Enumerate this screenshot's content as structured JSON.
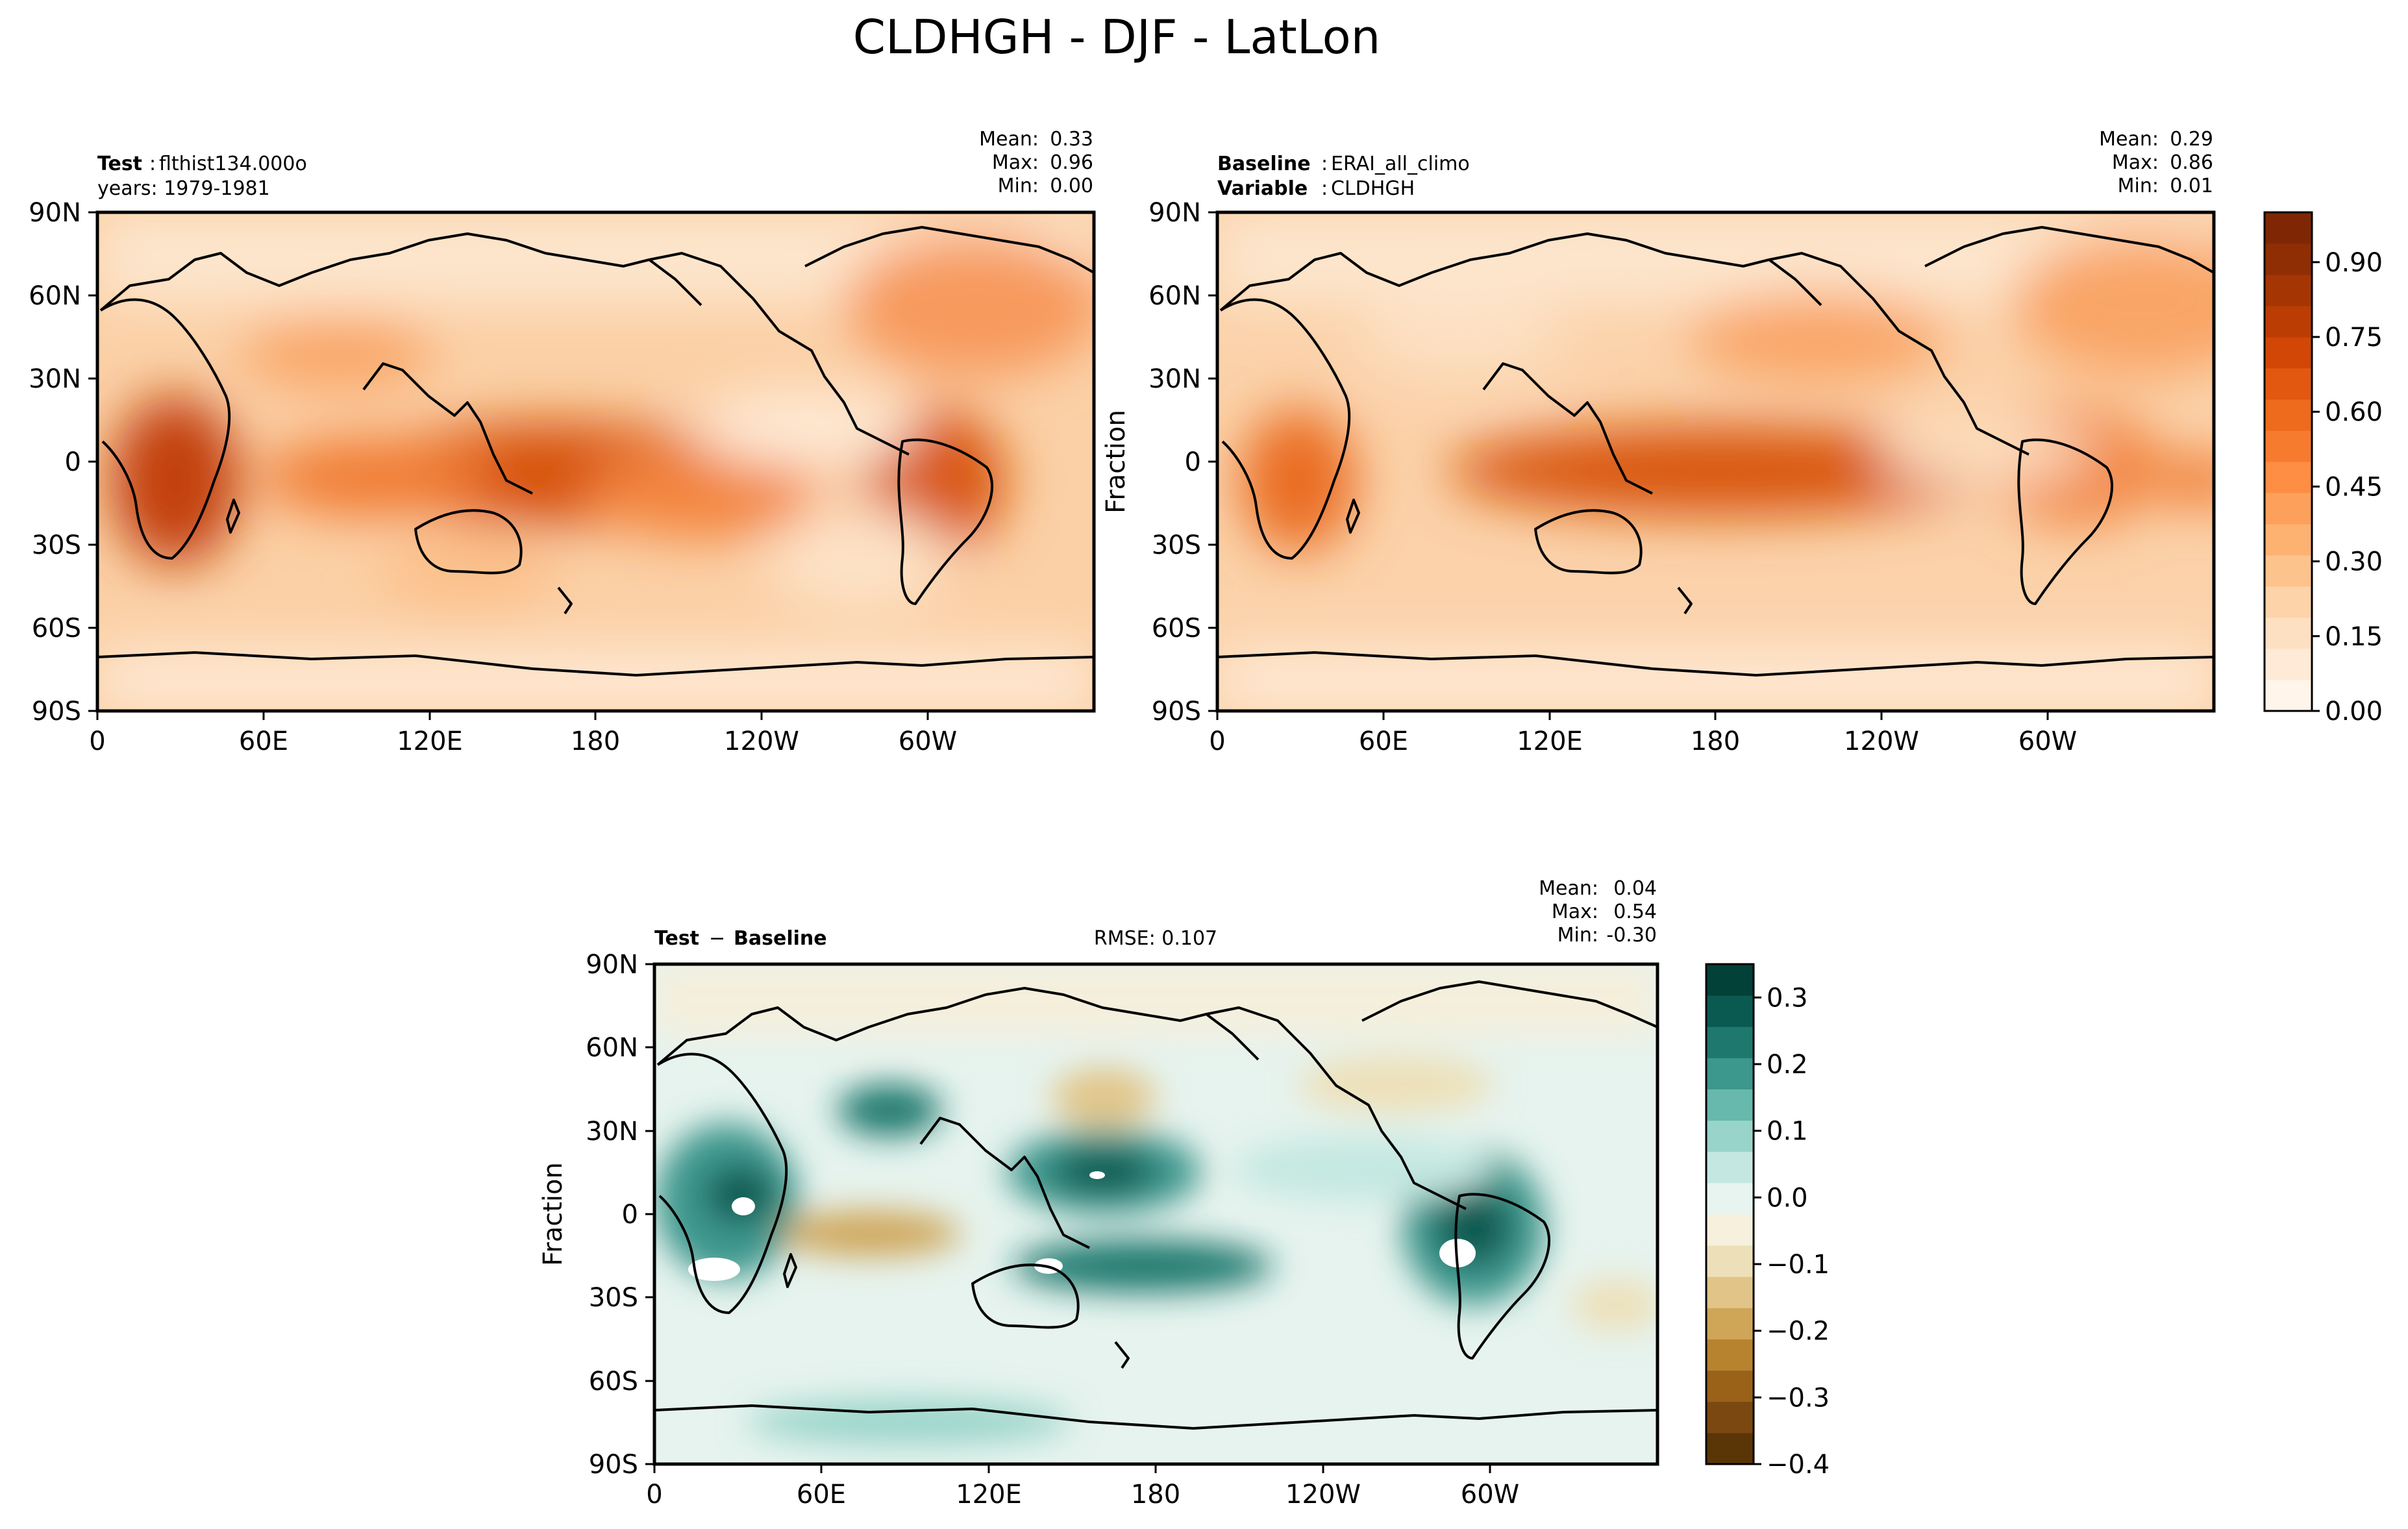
{
  "figure": {
    "title": "CLDHGH - DJF - LatLon"
  },
  "panels": {
    "test": {
      "label_bold": "Test",
      "label_sep": ":",
      "label_value": "flthist134.000o",
      "line2": "years: 1979-1981",
      "ylabel": "",
      "stats": {
        "mean_label": "Mean:",
        "mean": "0.33",
        "max_label": "Max:",
        "max": "0.96",
        "min_label": "Min:",
        "min": "0.00"
      }
    },
    "baseline": {
      "label_bold": "Baseline",
      "label_sep": ":",
      "label_value": "ERAI_all_climo",
      "line2_bold": "Variable",
      "line2_sep": ":",
      "line2_value": "CLDHGH",
      "ylabel": "Fraction",
      "stats": {
        "mean_label": "Mean:",
        "mean": "0.29",
        "max_label": "Max:",
        "max": "0.86",
        "min_label": "Min:",
        "min": "0.01"
      }
    },
    "diff": {
      "label_a": "Test",
      "label_op": "−",
      "label_b": "Baseline",
      "rmse": "RMSE: 0.107",
      "ylabel": "Fraction",
      "stats": {
        "mean_label": "Mean:",
        "mean": "0.04",
        "max_label": "Max:",
        "max": "0.54",
        "min_label": "Min:",
        "min": "-0.30"
      }
    }
  },
  "axes": {
    "lat_ticks": [
      "90N",
      "60N",
      "30N",
      "0",
      "30S",
      "60S",
      "90S"
    ],
    "lon_ticks": [
      "0",
      "60E",
      "120E",
      "180",
      "120W",
      "60W"
    ]
  },
  "colorbars": {
    "main": {
      "ticks": [
        "0.00",
        "0.15",
        "0.30",
        "0.45",
        "0.60",
        "0.75",
        "0.90"
      ],
      "colors": [
        "#fff5eb",
        "#feead6",
        "#fde0c2",
        "#fdd3a9",
        "#fdc38d",
        "#fdb272",
        "#fda05b",
        "#fd8e44",
        "#f77b2f",
        "#ee6a1c",
        "#e35810",
        "#d24706",
        "#bc3d03",
        "#a53603",
        "#8f2e04",
        "#7f2704"
      ]
    },
    "diff": {
      "ticks": [
        "−0.4",
        "−0.3",
        "−0.2",
        "−0.1",
        "0.0",
        "0.1",
        "0.2",
        "0.3"
      ],
      "colors": [
        "#5a3506",
        "#7a4810",
        "#9a6119",
        "#b8832f",
        "#cfa658",
        "#e1c588",
        "#ede0b8",
        "#f6f0dc",
        "#e7f4f0",
        "#c4e8e1",
        "#98d4c9",
        "#66b9ac",
        "#3c978d",
        "#1e786d",
        "#0a5a51",
        "#014137"
      ]
    }
  },
  "colors": {
    "ocean_main": "#fbd0a6",
    "ocean_diff": "#e6f3ee",
    "coast": "#000000"
  }
}
